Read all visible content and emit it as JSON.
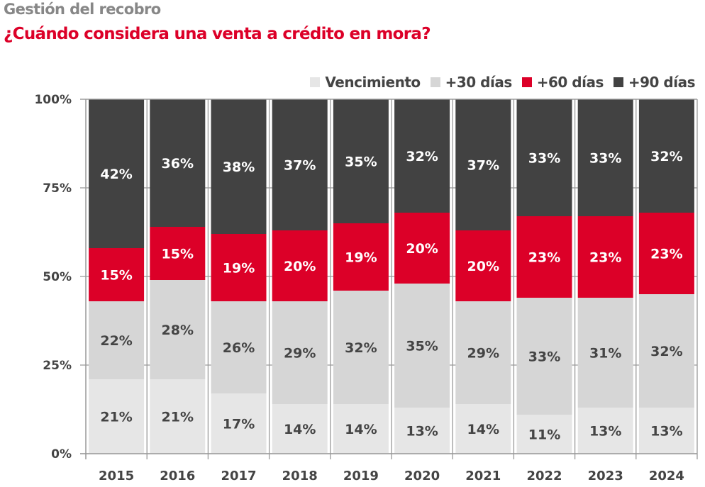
{
  "header": {
    "supertitle": "Gestión del recobro",
    "title": "¿Cuándo considera una venta a crédito en mora?"
  },
  "colors": {
    "Vencimiento": "#e6e6e6",
    "+30 días": "#d6d6d6",
    "+60 días": "#dc0028",
    "+90 días": "#424242",
    "label_dark": "#444444",
    "label_light": "#ffffff",
    "axis": "#999999"
  },
  "legend": [
    {
      "label": "Vencimiento",
      "color": "#e6e6e6"
    },
    {
      "label": "+30 días",
      "color": "#d6d6d6"
    },
    {
      "label": "+60 días",
      "color": "#dc0028"
    },
    {
      "label": "+90 días",
      "color": "#424242"
    }
  ],
  "chart_data": {
    "type": "bar",
    "stacked": true,
    "orientation": "vertical",
    "title": "¿Cuándo considera una venta a crédito en mora?",
    "subtitle": "Gestión del recobro",
    "xlabel": "",
    "ylabel": "",
    "categories": [
      "2015",
      "2016",
      "2017",
      "2018",
      "2019",
      "2020",
      "2021",
      "2022",
      "2023",
      "2024"
    ],
    "series": [
      {
        "name": "Vencimiento",
        "values": [
          21,
          21,
          17,
          14,
          14,
          13,
          14,
          11,
          13,
          13
        ]
      },
      {
        "name": "+30 días",
        "values": [
          22,
          28,
          26,
          29,
          32,
          35,
          29,
          33,
          31,
          32
        ]
      },
      {
        "name": "+60 días",
        "values": [
          15,
          15,
          19,
          20,
          19,
          20,
          20,
          23,
          23,
          23
        ]
      },
      {
        "name": "+90 días",
        "values": [
          42,
          36,
          38,
          37,
          35,
          32,
          37,
          33,
          33,
          32
        ]
      }
    ],
    "ylim": [
      0,
      100
    ],
    "yticks": [
      0,
      25,
      50,
      75,
      100
    ],
    "ytick_labels": [
      "0%",
      "25%",
      "50%",
      "75%",
      "100%"
    ],
    "value_suffix": "%",
    "grid": true,
    "legend_position": "top-right"
  }
}
